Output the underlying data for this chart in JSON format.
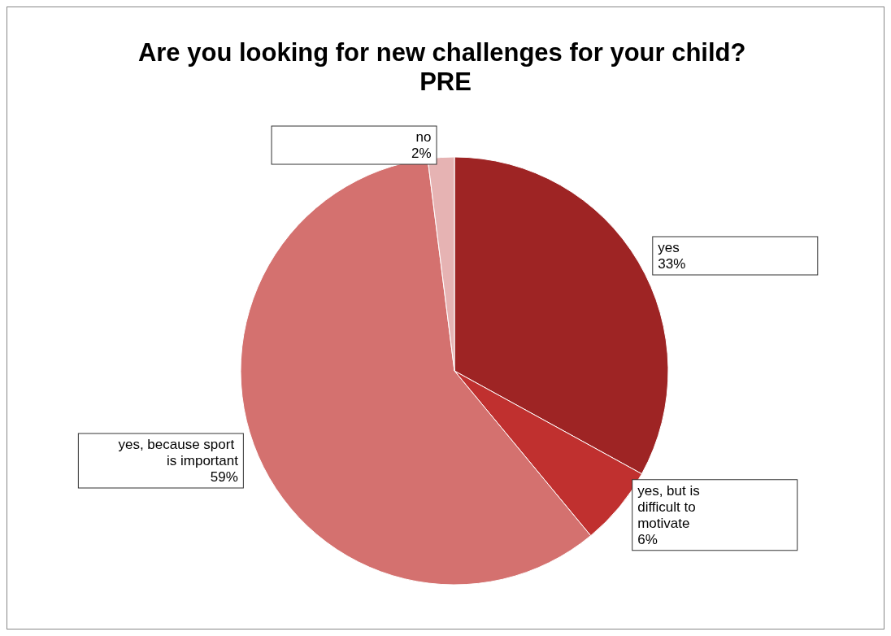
{
  "chart_data": {
    "type": "pie",
    "title": "Are you looking for new challenges for your child? PRE",
    "categories": [
      "yes",
      "yes, but is difficult to motivate",
      "yes, because sport is important",
      "no"
    ],
    "values": [
      33,
      6,
      59,
      2
    ],
    "colors": [
      "#9e2424",
      "#c0302f",
      "#d4716f",
      "#e6b3b3"
    ],
    "value_labels": [
      "33%",
      "6%",
      "59%",
      "2%"
    ],
    "legend": false
  }
}
